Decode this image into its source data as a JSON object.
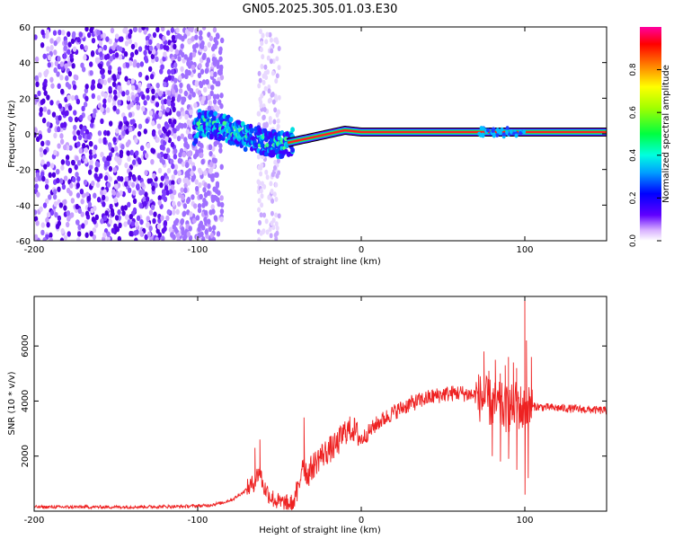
{
  "title": "GN05.2025.305.01.03.E30",
  "chart_data": [
    {
      "type": "heatmap",
      "xlabel": "Height of straight line (km)",
      "ylabel": "Frequency (Hz)",
      "xlim": [
        -200,
        150
      ],
      "ylim": [
        -60,
        60
      ],
      "x_ticks": [
        {
          "value": -200,
          "label": "-200"
        },
        {
          "value": -100,
          "label": "-100"
        },
        {
          "value": 0,
          "label": "0"
        },
        {
          "value": 100,
          "label": "100"
        }
      ],
      "y_ticks": [
        {
          "value": 60,
          "label": "60"
        },
        {
          "value": 40,
          "label": "40"
        },
        {
          "value": 20,
          "label": "20"
        },
        {
          "value": 0,
          "label": "0"
        },
        {
          "value": -20,
          "label": "-20"
        },
        {
          "value": -40,
          "label": "-40"
        },
        {
          "value": -60,
          "label": "-60"
        }
      ],
      "colorbar": {
        "label": "Normalized spectral amplitude",
        "range": [
          0,
          1
        ],
        "ticks": [
          {
            "value": 0.0,
            "label": "0.0"
          },
          {
            "value": 0.2,
            "label": "0.2"
          },
          {
            "value": 0.4,
            "label": "0.4"
          },
          {
            "value": 0.6,
            "label": "0.6"
          },
          {
            "value": 0.8,
            "label": "0.8"
          }
        ],
        "colors": [
          "#ffffff",
          "#c080ff",
          "#6000ff",
          "#0000ff",
          "#00a0ff",
          "#00ffe0",
          "#00ff40",
          "#a0ff00",
          "#ffff00",
          "#ff8000",
          "#ff0000",
          "#ff00a0"
        ]
      },
      "ridge": [
        {
          "x": -100,
          "f": 6
        },
        {
          "x": -90,
          "f": 5
        },
        {
          "x": -80,
          "f": 2
        },
        {
          "x": -70,
          "f": -2
        },
        {
          "x": -60,
          "f": -4
        },
        {
          "x": -50,
          "f": -6
        },
        {
          "x": -40,
          "f": -4
        },
        {
          "x": -30,
          "f": -2
        },
        {
          "x": -20,
          "f": 0
        },
        {
          "x": -10,
          "f": 2
        },
        {
          "x": 0,
          "f": 1
        },
        {
          "x": 150,
          "f": 1
        }
      ],
      "noise_region": {
        "x": [
          -200,
          -85
        ],
        "f": [
          -60,
          60
        ],
        "level": 0.12
      },
      "noise_stripe": {
        "x": [
          -63,
          -50
        ],
        "f": [
          -60,
          60
        ],
        "level": 0.08
      }
    },
    {
      "type": "line",
      "xlabel": "Height of straight line (km)",
      "ylabel": "SNR (10 * v/v)",
      "xlim": [
        -200,
        150
      ],
      "ylim": [
        0,
        7800
      ],
      "x_ticks": [
        {
          "value": -200,
          "label": "-200"
        },
        {
          "value": -100,
          "label": "-100"
        },
        {
          "value": 0,
          "label": "0"
        },
        {
          "value": 100,
          "label": "100"
        }
      ],
      "y_ticks": [
        {
          "value": 2000,
          "label": "2000"
        },
        {
          "value": 4000,
          "label": "4000"
        },
        {
          "value": 6000,
          "label": "6000"
        }
      ],
      "color": "#ee2222",
      "series": [
        {
          "name": "SNR",
          "points": [
            [
              -200,
              150
            ],
            [
              -150,
              150
            ],
            [
              -110,
              170
            ],
            [
              -95,
              200
            ],
            [
              -85,
              300
            ],
            [
              -78,
              450
            ],
            [
              -72,
              700
            ],
            [
              -66,
              1000
            ],
            [
              -62,
              1500
            ],
            [
              -60,
              900
            ],
            [
              -55,
              500
            ],
            [
              -50,
              300
            ],
            [
              -45,
              250
            ],
            [
              -42,
              300
            ],
            [
              -38,
              800
            ],
            [
              -36,
              1900
            ],
            [
              -33,
              1300
            ],
            [
              -30,
              1600
            ],
            [
              -25,
              2000
            ],
            [
              -20,
              2200
            ],
            [
              -15,
              2400
            ],
            [
              -10,
              2900
            ],
            [
              -5,
              3000
            ],
            [
              0,
              2600
            ],
            [
              5,
              2900
            ],
            [
              10,
              3200
            ],
            [
              20,
              3600
            ],
            [
              30,
              3900
            ],
            [
              40,
              4100
            ],
            [
              50,
              4250
            ],
            [
              60,
              4300
            ],
            [
              70,
              4200
            ],
            [
              80,
              3900
            ],
            [
              90,
              3700
            ],
            [
              95,
              3900
            ],
            [
              100,
              3600
            ],
            [
              105,
              3800
            ],
            [
              120,
              3750
            ],
            [
              135,
              3700
            ],
            [
              150,
              3650
            ]
          ],
          "spikes": [
            [
              -65,
              2300
            ],
            [
              -62,
              2600
            ],
            [
              -35,
              3400
            ],
            [
              75,
              5800
            ],
            [
              78,
              5100
            ],
            [
              82,
              5500
            ],
            [
              85,
              5000
            ],
            [
              88,
              5300
            ],
            [
              90,
              5600
            ],
            [
              93,
              5400
            ],
            [
              95,
              5200
            ],
            [
              100,
              7800
            ],
            [
              101,
              6200
            ],
            [
              104,
              5600
            ]
          ],
          "dips": [
            [
              80,
              2000
            ],
            [
              85,
              1800
            ],
            [
              90,
              1900
            ],
            [
              95,
              1500
            ],
            [
              100,
              600
            ],
            [
              102,
              1200
            ]
          ]
        }
      ]
    }
  ]
}
